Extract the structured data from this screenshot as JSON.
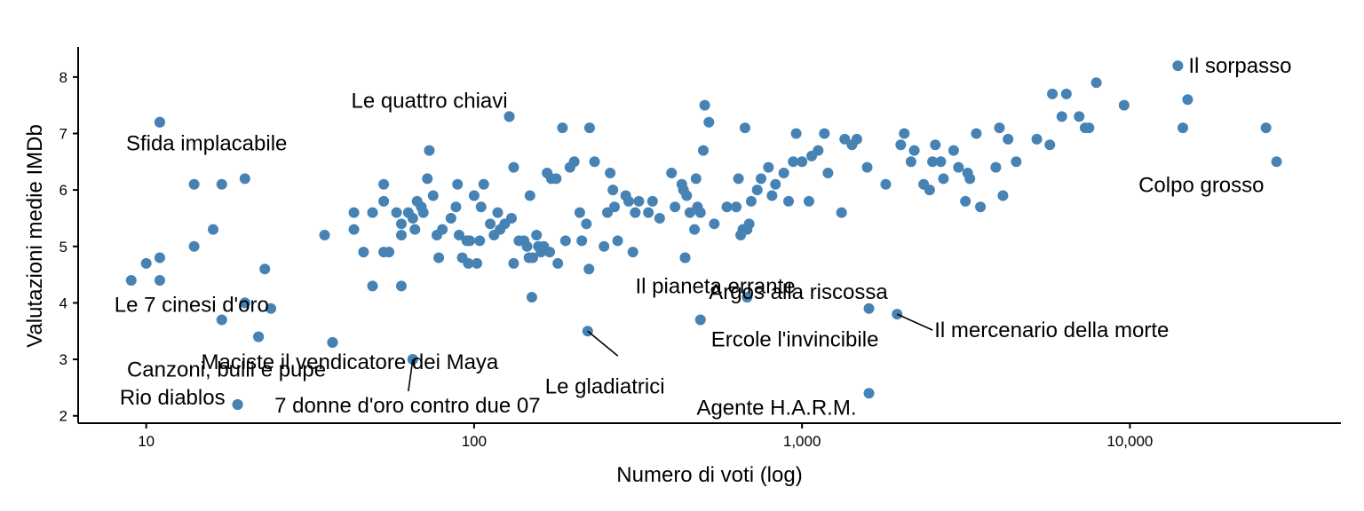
{
  "chart_data": {
    "type": "scatter",
    "xlabel": "Numero di voti (log)",
    "ylabel": "Valutazioni medie IMDb",
    "x_scale": "log",
    "xlim": [
      6.2,
      44000
    ],
    "ylim": [
      1.87,
      8.5
    ],
    "x_ticks": [
      10,
      100,
      1000,
      10000
    ],
    "x_tick_labels": [
      "10",
      "100",
      "1,000",
      "10,000"
    ],
    "y_ticks": [
      2,
      3,
      4,
      5,
      6,
      7,
      8
    ],
    "y_tick_labels": [
      "2",
      "3",
      "4",
      "5",
      "6",
      "7",
      "8"
    ],
    "grid": false,
    "point_color": "#4682b4",
    "points": [
      [
        9,
        4.4
      ],
      [
        10,
        4.7
      ],
      [
        11,
        4.8
      ],
      [
        11,
        4.4
      ],
      [
        11,
        7.2
      ],
      [
        14,
        5.0
      ],
      [
        14,
        6.1
      ],
      [
        16,
        5.3
      ],
      [
        17,
        3.7
      ],
      [
        17,
        6.1
      ],
      [
        19,
        2.2
      ],
      [
        20,
        6.2
      ],
      [
        20,
        4.0
      ],
      [
        22,
        3.4
      ],
      [
        23,
        4.6
      ],
      [
        24,
        3.9
      ],
      [
        35,
        5.2
      ],
      [
        37,
        3.3
      ],
      [
        43,
        5.6
      ],
      [
        43,
        5.3
      ],
      [
        46,
        4.9
      ],
      [
        49,
        4.3
      ],
      [
        49,
        5.6
      ],
      [
        53,
        5.8
      ],
      [
        53,
        6.1
      ],
      [
        53,
        4.9
      ],
      [
        55,
        4.9
      ],
      [
        58,
        5.6
      ],
      [
        60,
        5.4
      ],
      [
        60,
        5.2
      ],
      [
        60,
        4.3
      ],
      [
        63,
        5.6
      ],
      [
        65,
        3.0
      ],
      [
        65,
        5.5
      ],
      [
        66,
        5.3
      ],
      [
        67,
        5.8
      ],
      [
        69,
        5.7
      ],
      [
        70,
        5.6
      ],
      [
        72,
        6.2
      ],
      [
        73,
        6.7
      ],
      [
        75,
        5.9
      ],
      [
        77,
        5.2
      ],
      [
        78,
        4.8
      ],
      [
        80,
        5.3
      ],
      [
        85,
        5.5
      ],
      [
        88,
        5.7
      ],
      [
        89,
        6.1
      ],
      [
        90,
        5.2
      ],
      [
        92,
        4.8
      ],
      [
        95,
        5.1
      ],
      [
        96,
        4.7
      ],
      [
        97,
        5.1
      ],
      [
        100,
        5.9
      ],
      [
        102,
        4.7
      ],
      [
        104,
        5.1
      ],
      [
        105,
        5.7
      ],
      [
        107,
        6.1
      ],
      [
        112,
        5.4
      ],
      [
        115,
        5.2
      ],
      [
        118,
        5.6
      ],
      [
        120,
        5.3
      ],
      [
        124,
        5.4
      ],
      [
        128,
        7.3
      ],
      [
        130,
        5.5
      ],
      [
        132,
        6.4
      ],
      [
        132,
        4.7
      ],
      [
        137,
        5.1
      ],
      [
        142,
        5.1
      ],
      [
        145,
        5.0
      ],
      [
        147,
        4.8
      ],
      [
        148,
        5.9
      ],
      [
        150,
        4.1
      ],
      [
        151,
        4.8
      ],
      [
        155,
        5.2
      ],
      [
        157,
        5.0
      ],
      [
        160,
        4.9
      ],
      [
        163,
        5.0
      ],
      [
        167,
        6.3
      ],
      [
        170,
        4.9
      ],
      [
        172,
        6.2
      ],
      [
        178,
        6.2
      ],
      [
        180,
        4.7
      ],
      [
        186,
        7.1
      ],
      [
        190,
        5.1
      ],
      [
        196,
        6.4
      ],
      [
        202,
        6.5
      ],
      [
        210,
        5.6
      ],
      [
        213,
        5.1
      ],
      [
        220,
        5.4
      ],
      [
        224,
        4.6
      ],
      [
        225,
        7.1
      ],
      [
        233,
        6.5
      ],
      [
        249,
        5.0
      ],
      [
        255,
        5.6
      ],
      [
        260,
        6.3
      ],
      [
        265,
        6.0
      ],
      [
        268,
        5.7
      ],
      [
        274,
        5.1
      ],
      [
        290,
        5.9
      ],
      [
        296,
        5.8
      ],
      [
        305,
        4.9
      ],
      [
        310,
        5.6
      ],
      [
        318,
        5.8
      ],
      [
        340,
        5.6
      ],
      [
        350,
        5.8
      ],
      [
        368,
        5.5
      ],
      [
        400,
        6.3
      ],
      [
        410,
        5.7
      ],
      [
        430,
        6.1
      ],
      [
        435,
        6.0
      ],
      [
        440,
        4.8
      ],
      [
        445,
        5.9
      ],
      [
        455,
        5.6
      ],
      [
        470,
        5.3
      ],
      [
        475,
        6.2
      ],
      [
        480,
        5.7
      ],
      [
        490,
        5.6
      ],
      [
        500,
        6.7
      ],
      [
        505,
        7.5
      ],
      [
        520,
        7.2
      ],
      [
        540,
        5.4
      ],
      [
        590,
        5.7
      ],
      [
        630,
        5.7
      ],
      [
        640,
        6.2
      ],
      [
        650,
        5.2
      ],
      [
        660,
        5.3
      ],
      [
        670,
        7.1
      ],
      [
        680,
        5.3
      ],
      [
        690,
        5.4
      ],
      [
        700,
        5.8
      ],
      [
        730,
        6.0
      ],
      [
        750,
        6.2
      ],
      [
        790,
        6.4
      ],
      [
        810,
        5.9
      ],
      [
        830,
        6.1
      ],
      [
        880,
        6.3
      ],
      [
        910,
        5.8
      ],
      [
        940,
        6.5
      ],
      [
        960,
        7.0
      ],
      [
        1000,
        6.5
      ],
      [
        1050,
        5.8
      ],
      [
        1070,
        6.6
      ],
      [
        1120,
        6.7
      ],
      [
        1170,
        7.0
      ],
      [
        1200,
        6.3
      ],
      [
        1320,
        5.6
      ],
      [
        1350,
        6.9
      ],
      [
        1420,
        6.8
      ],
      [
        1470,
        6.9
      ],
      [
        1580,
        6.4
      ],
      [
        1800,
        6.1
      ],
      [
        2000,
        6.8
      ],
      [
        2050,
        7.0
      ],
      [
        2150,
        6.5
      ],
      [
        2200,
        6.7
      ],
      [
        2350,
        6.1
      ],
      [
        2450,
        6.0
      ],
      [
        2500,
        6.5
      ],
      [
        2550,
        6.8
      ],
      [
        2650,
        6.5
      ],
      [
        2700,
        6.2
      ],
      [
        2900,
        6.7
      ],
      [
        3000,
        6.4
      ],
      [
        3150,
        5.8
      ],
      [
        3200,
        6.3
      ],
      [
        3250,
        6.2
      ],
      [
        3400,
        7.0
      ],
      [
        3500,
        5.7
      ],
      [
        3900,
        6.4
      ],
      [
        4000,
        7.1
      ],
      [
        4100,
        5.9
      ],
      [
        4250,
        6.9
      ],
      [
        4500,
        6.5
      ],
      [
        5200,
        6.9
      ],
      [
        5700,
        6.8
      ],
      [
        5800,
        7.7
      ],
      [
        6200,
        7.3
      ],
      [
        6400,
        7.7
      ],
      [
        7000,
        7.3
      ],
      [
        7300,
        7.1
      ],
      [
        7500,
        7.1
      ],
      [
        7900,
        7.9
      ],
      [
        9600,
        7.5
      ],
      [
        14500,
        7.1
      ]
    ],
    "labeled_points": [
      {
        "label": "Il sorpasso",
        "x": 14000,
        "y": 8.2
      },
      {
        "label": "Le quattro chiavi",
        "x": 128,
        "y": 7.3
      },
      {
        "label": "Sfida implacabile",
        "x": 11,
        "y": 7.2
      },
      {
        "label": "Colpo grosso",
        "x": 28000,
        "y": 6.5
      },
      {
        "label": "Il pianeta errante",
        "x": 440,
        "y": 4.8
      },
      {
        "label": "Le 7 cinesi d'oro",
        "x": 20,
        "y": 4.0
      },
      {
        "label": "Argos alla riscossa",
        "x": 680,
        "y": 4.1
      },
      {
        "label": "Il mercenario della morte",
        "x": 1950,
        "y": 3.8
      },
      {
        "label": "Ercole l'invincibile",
        "x": 490,
        "y": 3.7
      },
      {
        "label": "Maciste il vendicatore dei Maya",
        "x": 37,
        "y": 3.3
      },
      {
        "label": "Le gladiatrici",
        "x": 222,
        "y": 3.5
      },
      {
        "label": "Canzoni, bulli e pupe",
        "x": 22,
        "y": 3.4
      },
      {
        "label": "Agente H.A.R.M.",
        "x": 1600,
        "y": 2.4
      },
      {
        "label": "Rio diablos",
        "x": 19,
        "y": 2.2
      },
      {
        "label": "7 donne d'oro contro due 07",
        "x": 65,
        "y": 3.0
      }
    ],
    "extra_points": [
      [
        1600,
        3.9
      ],
      [
        15000,
        7.6
      ],
      [
        26000,
        7.1
      ]
    ]
  }
}
